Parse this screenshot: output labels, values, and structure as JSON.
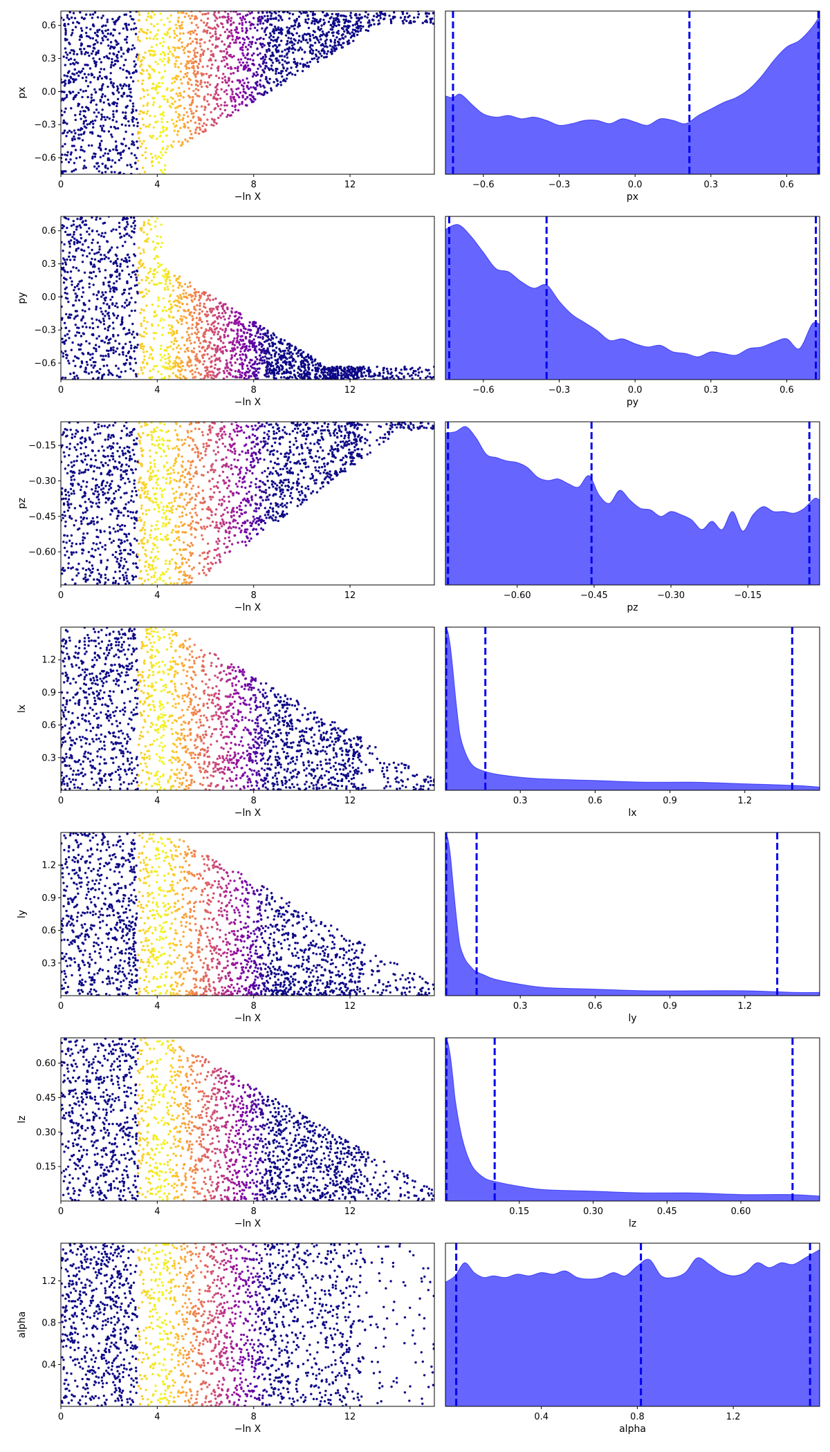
{
  "chart_data": [
    {
      "panel": "trace",
      "parameter": "px",
      "type": "scatter",
      "xlabel": "−ln X",
      "ylabel": "px",
      "xlim": [
        0,
        15.5
      ],
      "ylim": [
        -0.75,
        0.73
      ],
      "xticks": [
        0,
        4,
        8,
        12
      ],
      "xtick_labels": [
        "0",
        "4",
        "8",
        "12"
      ],
      "yticks": [
        0.6,
        0.3,
        0.0,
        -0.3,
        -0.6
      ],
      "ytick_labels": [
        "0.6",
        "0.3",
        "0.0",
        "−0.3",
        "−0.6"
      ],
      "colormap": "plasma",
      "shape": "upper_fan"
    },
    {
      "panel": "posterior",
      "parameter": "px",
      "type": "area",
      "xlabel": "px",
      "xlim": [
        -0.75,
        0.73
      ],
      "xticks": [
        -0.6,
        -0.3,
        0.0,
        0.3,
        0.6
      ],
      "xtick_labels": [
        "−0.6",
        "−0.3",
        "0.0",
        "0.3",
        "0.6"
      ],
      "x": [
        -0.75,
        -0.72,
        -0.69,
        -0.64,
        -0.6,
        -0.55,
        -0.5,
        -0.45,
        -0.4,
        -0.35,
        -0.3,
        -0.25,
        -0.2,
        -0.15,
        -0.1,
        -0.05,
        0.0,
        0.05,
        0.1,
        0.15,
        0.2,
        0.25,
        0.3,
        0.35,
        0.4,
        0.45,
        0.5,
        0.55,
        0.6,
        0.65,
        0.7,
        0.73
      ],
      "y": [
        0.48,
        0.47,
        0.49,
        0.42,
        0.37,
        0.35,
        0.36,
        0.34,
        0.35,
        0.33,
        0.3,
        0.31,
        0.33,
        0.33,
        0.31,
        0.34,
        0.32,
        0.3,
        0.34,
        0.33,
        0.31,
        0.36,
        0.4,
        0.44,
        0.47,
        0.52,
        0.6,
        0.7,
        0.78,
        0.82,
        0.9,
        0.97
      ],
      "ylim": [
        0,
        1.0
      ],
      "quantile_lines": [
        -0.72,
        0.215,
        0.725
      ],
      "fill_color": "#6666ff",
      "line_color": "#0000ee"
    },
    {
      "panel": "trace",
      "parameter": "py",
      "type": "scatter",
      "xlabel": "−ln X",
      "ylabel": "py",
      "xlim": [
        0,
        15.5
      ],
      "ylim": [
        -0.75,
        0.73
      ],
      "xticks": [
        0,
        4,
        8,
        12
      ],
      "xtick_labels": [
        "0",
        "4",
        "8",
        "12"
      ],
      "yticks": [
        0.6,
        0.3,
        0.0,
        -0.3,
        -0.6
      ],
      "ytick_labels": [
        "0.6",
        "0.3",
        "0.0",
        "−0.3",
        "−0.6"
      ],
      "colormap": "plasma",
      "shape": "lower_band"
    },
    {
      "panel": "posterior",
      "parameter": "py",
      "type": "area",
      "xlabel": "py",
      "xlim": [
        -0.75,
        0.73
      ],
      "xticks": [
        -0.6,
        -0.3,
        0.0,
        0.3,
        0.6
      ],
      "xtick_labels": [
        "−0.6",
        "−0.3",
        "0.0",
        "0.3",
        "0.6"
      ],
      "x": [
        -0.75,
        -0.7,
        -0.65,
        -0.6,
        -0.55,
        -0.5,
        -0.45,
        -0.4,
        -0.35,
        -0.3,
        -0.25,
        -0.2,
        -0.15,
        -0.1,
        -0.05,
        0.0,
        0.05,
        0.1,
        0.15,
        0.2,
        0.25,
        0.3,
        0.35,
        0.4,
        0.45,
        0.5,
        0.55,
        0.6,
        0.65,
        0.7,
        0.73
      ],
      "y": [
        0.92,
        0.95,
        0.88,
        0.78,
        0.68,
        0.66,
        0.6,
        0.56,
        0.58,
        0.48,
        0.4,
        0.35,
        0.3,
        0.24,
        0.25,
        0.22,
        0.2,
        0.21,
        0.17,
        0.16,
        0.14,
        0.17,
        0.16,
        0.15,
        0.19,
        0.2,
        0.23,
        0.25,
        0.19,
        0.34,
        0.34
      ],
      "ylim": [
        0,
        1.0
      ],
      "quantile_lines": [
        -0.735,
        -0.35,
        0.715
      ],
      "fill_color": "#6666ff",
      "line_color": "#0000ee"
    },
    {
      "panel": "trace",
      "parameter": "pz",
      "type": "scatter",
      "xlabel": "−ln X",
      "ylabel": "pz",
      "xlim": [
        0,
        15.5
      ],
      "ylim": [
        -0.74,
        -0.05
      ],
      "xticks": [
        0,
        4,
        8,
        12
      ],
      "xtick_labels": [
        "0",
        "4",
        "8",
        "12"
      ],
      "yticks": [
        -0.15,
        -0.3,
        -0.45,
        -0.6
      ],
      "ytick_labels": [
        "−0.15",
        "−0.30",
        "−0.45",
        "−0.60"
      ],
      "colormap": "plasma",
      "shape": "upper_slope"
    },
    {
      "panel": "posterior",
      "parameter": "pz",
      "type": "area",
      "xlabel": "pz",
      "xlim": [
        -0.74,
        -0.01
      ],
      "xticks": [
        -0.6,
        -0.45,
        -0.3,
        -0.15
      ],
      "xtick_labels": [
        "−0.60",
        "−0.45",
        "−0.30",
        "−0.15"
      ],
      "x": [
        -0.74,
        -0.72,
        -0.7,
        -0.68,
        -0.66,
        -0.64,
        -0.62,
        -0.6,
        -0.58,
        -0.56,
        -0.54,
        -0.52,
        -0.5,
        -0.48,
        -0.46,
        -0.44,
        -0.42,
        -0.4,
        -0.38,
        -0.36,
        -0.34,
        -0.32,
        -0.3,
        -0.28,
        -0.26,
        -0.24,
        -0.22,
        -0.2,
        -0.18,
        -0.16,
        -0.14,
        -0.12,
        -0.1,
        -0.08,
        -0.06,
        -0.04,
        -0.02,
        -0.01
      ],
      "y": [
        0.93,
        0.94,
        0.97,
        0.9,
        0.8,
        0.78,
        0.76,
        0.75,
        0.72,
        0.66,
        0.64,
        0.65,
        0.62,
        0.6,
        0.67,
        0.55,
        0.5,
        0.58,
        0.52,
        0.47,
        0.46,
        0.42,
        0.45,
        0.43,
        0.4,
        0.34,
        0.39,
        0.34,
        0.45,
        0.33,
        0.43,
        0.48,
        0.45,
        0.45,
        0.44,
        0.47,
        0.53,
        0.52
      ],
      "ylim": [
        0,
        1.0
      ],
      "quantile_lines": [
        -0.735,
        -0.455,
        -0.03
      ],
      "fill_color": "#6666ff",
      "line_color": "#0000ee"
    },
    {
      "panel": "trace",
      "parameter": "lx",
      "type": "scatter",
      "xlabel": "−ln X",
      "ylabel": "lx",
      "xlim": [
        0,
        15.5
      ],
      "ylim": [
        0.0,
        1.5
      ],
      "xticks": [
        0,
        4,
        8,
        12
      ],
      "xtick_labels": [
        "0",
        "4",
        "8",
        "12"
      ],
      "yticks": [
        1.2,
        0.9,
        0.6,
        0.3
      ],
      "ytick_labels": [
        "1.2",
        "0.9",
        "0.6",
        "0.3"
      ],
      "colormap": "plasma",
      "shape": "full_decay"
    },
    {
      "panel": "posterior",
      "parameter": "lx",
      "type": "area",
      "xlabel": "lx",
      "xlim": [
        0.0,
        1.5
      ],
      "xticks": [
        0.3,
        0.6,
        0.9,
        1.2
      ],
      "xtick_labels": [
        "0.3",
        "0.6",
        "0.9",
        "1.2"
      ],
      "x": [
        0.0,
        0.01,
        0.02,
        0.03,
        0.04,
        0.05,
        0.06,
        0.08,
        0.1,
        0.12,
        0.15,
        0.2,
        0.3,
        0.4,
        0.6,
        0.8,
        1.0,
        1.2,
        1.4,
        1.5
      ],
      "y": [
        1.0,
        0.97,
        0.88,
        0.74,
        0.58,
        0.44,
        0.33,
        0.23,
        0.17,
        0.14,
        0.12,
        0.1,
        0.08,
        0.07,
        0.06,
        0.05,
        0.05,
        0.04,
        0.03,
        0.02
      ],
      "ylim": [
        0,
        1.0
      ],
      "quantile_lines": [
        0.003,
        0.16,
        1.39
      ],
      "fill_color": "#6666ff",
      "line_color": "#0000ee"
    },
    {
      "panel": "trace",
      "parameter": "ly",
      "type": "scatter",
      "xlabel": "−ln X",
      "ylabel": "ly",
      "xlim": [
        0,
        15.5
      ],
      "ylim": [
        0.0,
        1.5
      ],
      "xticks": [
        0,
        4,
        8,
        12
      ],
      "xtick_labels": [
        "0",
        "4",
        "8",
        "12"
      ],
      "yticks": [
        1.2,
        0.9,
        0.6,
        0.3
      ],
      "ytick_labels": [
        "1.2",
        "0.9",
        "0.6",
        "0.3"
      ],
      "colormap": "plasma",
      "shape": "full_decay_low"
    },
    {
      "panel": "posterior",
      "parameter": "ly",
      "type": "area",
      "xlabel": "ly",
      "xlim": [
        0.0,
        1.5
      ],
      "xticks": [
        0.3,
        0.6,
        0.9,
        1.2
      ],
      "xtick_labels": [
        "0.3",
        "0.6",
        "0.9",
        "1.2"
      ],
      "x": [
        0.0,
        0.01,
        0.02,
        0.03,
        0.04,
        0.05,
        0.06,
        0.08,
        0.1,
        0.12,
        0.15,
        0.2,
        0.3,
        0.4,
        0.6,
        0.8,
        1.0,
        1.2,
        1.4,
        1.5
      ],
      "y": [
        1.0,
        0.96,
        0.86,
        0.7,
        0.54,
        0.4,
        0.3,
        0.22,
        0.18,
        0.15,
        0.13,
        0.1,
        0.07,
        0.05,
        0.04,
        0.03,
        0.03,
        0.03,
        0.02,
        0.02
      ],
      "ylim": [
        0,
        1.0
      ],
      "quantile_lines": [
        0.003,
        0.125,
        1.33
      ],
      "fill_color": "#6666ff",
      "line_color": "#0000ee"
    },
    {
      "panel": "trace",
      "parameter": "lz",
      "type": "scatter",
      "xlabel": "−ln X",
      "ylabel": "lz",
      "xlim": [
        0,
        15.5
      ],
      "ylim": [
        0.0,
        0.71
      ],
      "xticks": [
        0,
        4,
        8,
        12
      ],
      "xtick_labels": [
        "0",
        "4",
        "8",
        "12"
      ],
      "yticks": [
        0.6,
        0.45,
        0.3,
        0.15
      ],
      "ytick_labels": [
        "0.60",
        "0.45",
        "0.30",
        "0.15"
      ],
      "colormap": "plasma",
      "shape": "full_decay"
    },
    {
      "panel": "posterior",
      "parameter": "lz",
      "type": "area",
      "xlabel": "lz",
      "xlim": [
        0.0,
        0.76
      ],
      "xticks": [
        0.15,
        0.3,
        0.45,
        0.6
      ],
      "xtick_labels": [
        "0.15",
        "0.30",
        "0.45",
        "0.60"
      ],
      "x": [
        0.0,
        0.005,
        0.01,
        0.015,
        0.02,
        0.03,
        0.04,
        0.05,
        0.06,
        0.08,
        0.1,
        0.15,
        0.2,
        0.3,
        0.4,
        0.5,
        0.6,
        0.7,
        0.76
      ],
      "y": [
        1.0,
        0.97,
        0.89,
        0.76,
        0.62,
        0.44,
        0.32,
        0.24,
        0.19,
        0.14,
        0.12,
        0.09,
        0.07,
        0.06,
        0.05,
        0.05,
        0.04,
        0.04,
        0.03
      ],
      "ylim": [
        0,
        1.0
      ],
      "quantile_lines": [
        0.002,
        0.1,
        0.705
      ],
      "fill_color": "#6666ff",
      "line_color": "#0000ee"
    },
    {
      "panel": "trace",
      "parameter": "alpha",
      "type": "scatter",
      "xlabel": "−ln X",
      "ylabel": "alpha",
      "xlim": [
        0,
        15.5
      ],
      "ylim": [
        0.0,
        1.56
      ],
      "xticks": [
        0,
        4,
        8,
        12
      ],
      "xtick_labels": [
        "0",
        "4",
        "8",
        "12"
      ],
      "yticks": [
        1.2,
        0.8,
        0.4
      ],
      "ytick_labels": [
        "1.2",
        "0.8",
        "0.4"
      ],
      "colormap": "plasma",
      "shape": "full_uniform"
    },
    {
      "panel": "posterior",
      "parameter": "alpha",
      "type": "area",
      "xlabel": "alpha",
      "xlim": [
        0.0,
        1.56
      ],
      "xticks": [
        0.4,
        0.8,
        1.2
      ],
      "xtick_labels": [
        "0.4",
        "0.8",
        "1.2"
      ],
      "x": [
        0.0,
        0.04,
        0.08,
        0.12,
        0.16,
        0.2,
        0.25,
        0.3,
        0.35,
        0.4,
        0.45,
        0.5,
        0.55,
        0.6,
        0.65,
        0.7,
        0.75,
        0.8,
        0.85,
        0.9,
        0.95,
        1.0,
        1.05,
        1.1,
        1.15,
        1.2,
        1.25,
        1.3,
        1.35,
        1.4,
        1.45,
        1.5,
        1.56
      ],
      "y": [
        0.76,
        0.8,
        0.88,
        0.82,
        0.79,
        0.8,
        0.79,
        0.81,
        0.8,
        0.82,
        0.81,
        0.83,
        0.79,
        0.78,
        0.79,
        0.82,
        0.8,
        0.86,
        0.9,
        0.8,
        0.79,
        0.82,
        0.91,
        0.87,
        0.82,
        0.8,
        0.82,
        0.88,
        0.85,
        0.88,
        0.87,
        0.91,
        0.96
      ],
      "ylim": [
        0,
        1.0
      ],
      "quantile_lines": [
        0.045,
        0.815,
        1.52
      ],
      "fill_color": "#6666ff",
      "line_color": "#0000ee"
    }
  ]
}
